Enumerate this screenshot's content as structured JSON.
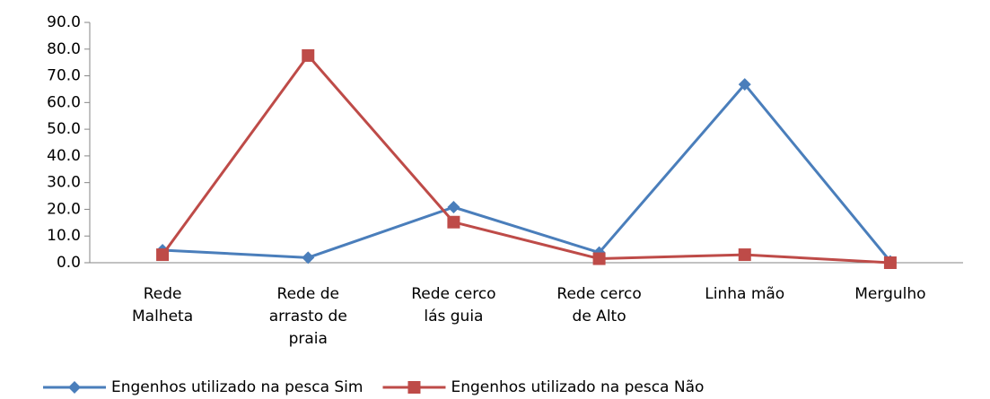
{
  "chart_data": {
    "type": "line",
    "categories": [
      "Rede\nMalheta",
      "Rede de\narrasto de\npraia",
      "Rede cerco\nlás guia",
      "Rede cerco\nde Alto",
      "Linha mão",
      "Mergulho"
    ],
    "series": [
      {
        "name": "Engenhos utilizado na pesca Sim",
        "color": "#4a7ebb",
        "marker": "diamond",
        "values": [
          4.7,
          1.9,
          20.8,
          3.8,
          66.8,
          0.5
        ]
      },
      {
        "name": "Engenhos utilizado na pesca Não",
        "color": "#be4b48",
        "marker": "square",
        "values": [
          3.0,
          77.6,
          15.2,
          1.5,
          3.0,
          0.0
        ]
      }
    ],
    "ylim": [
      0,
      90
    ],
    "yticks": [
      {
        "value": 0,
        "label": "0.0"
      },
      {
        "value": 10,
        "label": "10.0"
      },
      {
        "value": 20,
        "label": "20.0"
      },
      {
        "value": 30,
        "label": "30.0"
      },
      {
        "value": 40,
        "label": "40.0"
      },
      {
        "value": 50,
        "label": "50.0"
      },
      {
        "value": 60,
        "label": "60.0"
      },
      {
        "value": 70,
        "label": "70.0"
      },
      {
        "value": 80,
        "label": "80.0"
      },
      {
        "value": 90,
        "label": "90.0"
      }
    ],
    "grid": false,
    "legend": "bottom"
  }
}
